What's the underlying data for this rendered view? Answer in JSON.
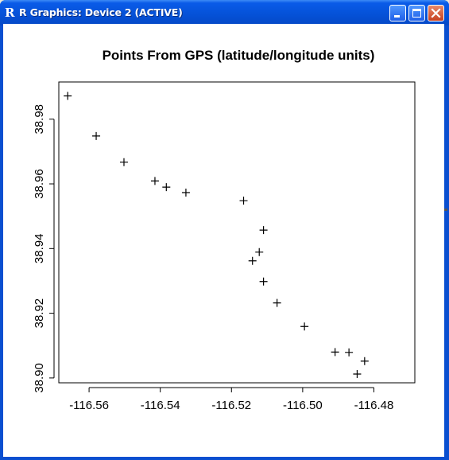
{
  "window": {
    "app_icon_glyph": "R",
    "title": "R Graphics: Device 2 (ACTIVE)",
    "controls": [
      "minimize-icon",
      "maximize-icon",
      "close-icon"
    ]
  },
  "chart_data": {
    "type": "scatter",
    "title": "Points From GPS (latitude/longitude units)",
    "xlabel": "",
    "ylabel": "",
    "marker": "+",
    "xlim": [
      -116.5685,
      -116.4685
    ],
    "ylim": [
      38.8985,
      38.9915
    ],
    "x_ticks": [
      -116.56,
      -116.54,
      -116.52,
      -116.5,
      -116.48
    ],
    "x_tick_labels": [
      "-116.56",
      "-116.54",
      "-116.52",
      "-116.50",
      "-116.48"
    ],
    "y_ticks": [
      38.9,
      38.92,
      38.94,
      38.96,
      38.98
    ],
    "y_tick_labels": [
      "38.90",
      "38.92",
      "38.94",
      "38.96",
      "38.98"
    ],
    "series": [
      {
        "x": [
          -116.566,
          -116.558,
          -116.5502,
          -116.5415,
          -116.5383,
          -116.5328,
          -116.5166,
          -116.511,
          -116.5122,
          -116.5141,
          -116.511,
          -116.5072,
          -116.4995,
          -116.4909,
          -116.487,
          -116.4826,
          -116.4847
        ],
        "y": [
          38.9872,
          38.9748,
          38.9667,
          38.9609,
          38.959,
          38.9573,
          38.9548,
          38.9457,
          38.9389,
          38.9362,
          38.9298,
          38.9232,
          38.9159,
          38.908,
          38.9079,
          38.9052,
          38.9012
        ]
      }
    ]
  }
}
